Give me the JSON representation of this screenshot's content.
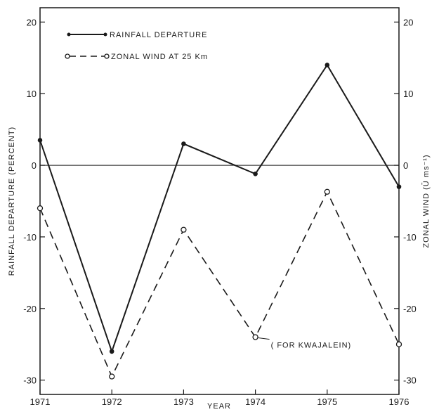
{
  "chart_data": {
    "type": "line",
    "title": "",
    "xlabel": "YEAR",
    "ylabel_left": "RAINFALL DEPARTURE (PERCENT)",
    "ylabel_right": "ZONAL WIND (Ū ms⁻¹)",
    "xlim": [
      1971,
      1976
    ],
    "ylim": [
      -32,
      22
    ],
    "x_ticks": [
      "1971",
      "1972",
      "1973",
      "1974",
      "1975",
      "1976"
    ],
    "y_ticks_left": [
      "20",
      "10",
      "0",
      "-10",
      "-20",
      "-30"
    ],
    "y_ticks_right": [
      "20",
      "10",
      "0",
      "-10",
      "-20",
      "-30"
    ],
    "reference_line_y": 0,
    "grid": false,
    "legend_position": "top-left",
    "x": [
      1971,
      1972,
      1973,
      1974,
      1975,
      1976
    ],
    "series": [
      {
        "name": "RAINFALL DEPARTURE",
        "values": [
          3.5,
          -26,
          3,
          -1.2,
          14,
          -3
        ],
        "style": "solid",
        "marker": "filled-circle"
      },
      {
        "name": "ZONAL WIND AT 25 Km",
        "values": [
          -6,
          -29.5,
          -9,
          -24,
          -3.7,
          -25
        ],
        "style": "dashed",
        "marker": "open-circle"
      }
    ],
    "annotations": [
      {
        "text": "( FOR KWAJALEIN)",
        "x": 1974,
        "y": -24
      }
    ],
    "colors": {
      "line": "#1a1a1a",
      "background": "#ffffff"
    }
  }
}
